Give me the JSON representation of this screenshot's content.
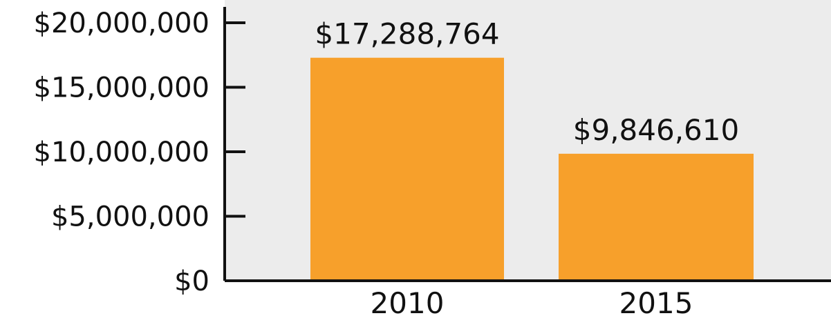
{
  "chart_data": {
    "type": "bar",
    "categories": [
      "2010",
      "2015"
    ],
    "values": [
      17288764,
      9846610
    ],
    "data_labels": [
      "$17,288,764",
      "$9,846,610"
    ],
    "title": "",
    "xlabel": "",
    "ylabel": "",
    "ylim": [
      0,
      20000000
    ],
    "yticks": [
      0,
      5000000,
      10000000,
      15000000,
      20000000
    ],
    "ytick_labels": [
      "$0",
      "$5,000,000",
      "$10,000,000",
      "$15,000,000",
      "$20,000,000"
    ],
    "grid": false,
    "legend": "none",
    "bar_color": "#F7A02B",
    "background_color": "#ECECEC",
    "axis_color": "#111111"
  }
}
